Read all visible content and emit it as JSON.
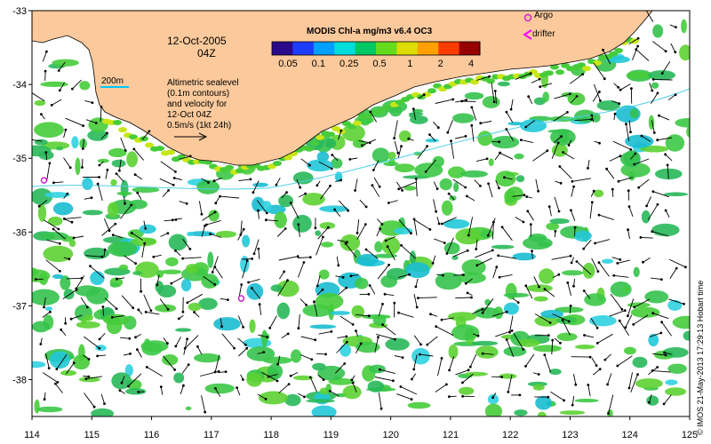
{
  "map": {
    "date": "12-Oct-2005",
    "time": "04Z",
    "scale_label": "200m",
    "info_lines": [
      "Altimetric sealevel",
      "(0.1m contours)",
      "and velocity for",
      "12-Oct 04Z",
      "0.5m/s (1kt 24h)"
    ],
    "extent": {
      "lon_min": 114,
      "lon_max": 125,
      "lat_min": -38.5,
      "lat_max": -33
    },
    "x_ticks": [
      114,
      115,
      116,
      117,
      118,
      119,
      120,
      121,
      122,
      123,
      124,
      125
    ],
    "y_ticks": [
      -33,
      -34,
      -35,
      -36,
      -37,
      -38
    ],
    "argo_floats": [
      {
        "lon": 114.2,
        "lat": -35.3
      },
      {
        "lon": 117.5,
        "lat": -36.9
      }
    ],
    "land_color": "#fbc99b",
    "chl_colorbar": {
      "title": "MODIS Chl-a mg/m3 v6.4 OC3",
      "tick_labels": [
        "0.05",
        "0.1",
        "0.25",
        "0.5",
        "1",
        "2",
        "4"
      ],
      "colors": [
        "#2a0a8a",
        "#1e3cff",
        "#00a0ff",
        "#00dcdc",
        "#00c864",
        "#64dc1e",
        "#dcdc00",
        "#ffa000",
        "#ff3c00",
        "#960000"
      ]
    },
    "legend": {
      "argo_label": "Argo",
      "drifter_label": "drifter",
      "argo_color": "#d020d0",
      "drifter_color": "#ff00ff"
    },
    "credit": "© IMOS 21-May-2013 17:29:13 Hobart time"
  }
}
